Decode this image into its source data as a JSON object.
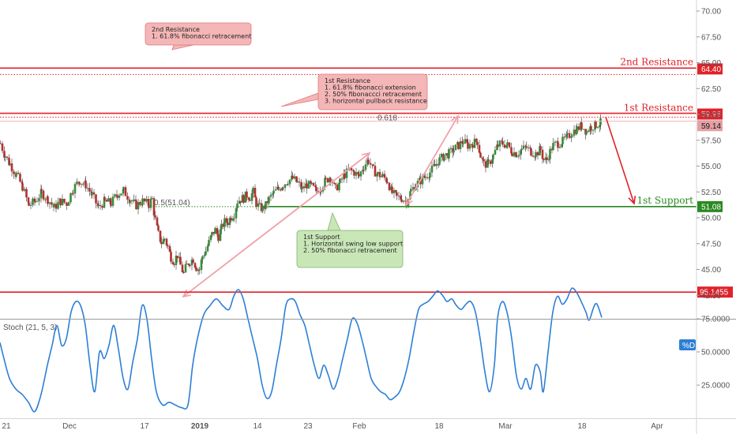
{
  "chart_data": [
    {
      "type": "candlestick",
      "title": "",
      "x_ticks": [
        "21",
        "Dec",
        "17",
        "2019",
        "14",
        "23",
        "Feb",
        "18",
        "Mar",
        "18",
        "Apr"
      ],
      "y_ticks": [
        "70.00",
        "67.50",
        "65.00",
        "62.50",
        "60.00",
        "57.50",
        "55.00",
        "52.50",
        "50.00",
        "47.50",
        "45.00",
        "42.50"
      ],
      "ylim": [
        40.5,
        71
      ],
      "grid": false,
      "price_path": [
        [
          0,
          57.2
        ],
        [
          6,
          56.0
        ],
        [
          12,
          55.2
        ],
        [
          20,
          54.2
        ],
        [
          28,
          53.0
        ],
        [
          36,
          51.2
        ],
        [
          44,
          51.6
        ],
        [
          52,
          52.4
        ],
        [
          60,
          51.8
        ],
        [
          68,
          51.0
        ],
        [
          76,
          51.6
        ],
        [
          84,
          51.4
        ],
        [
          92,
          52.8
        ],
        [
          100,
          53.6
        ],
        [
          108,
          53.2
        ],
        [
          116,
          52.2
        ],
        [
          124,
          51.0
        ],
        [
          132,
          51.6
        ],
        [
          140,
          51.4
        ],
        [
          148,
          52.3
        ],
        [
          156,
          52.6
        ],
        [
          164,
          51.8
        ],
        [
          172,
          51.2
        ],
        [
          180,
          51.6
        ],
        [
          188,
          51.3
        ],
        [
          192,
          51.8
        ],
        [
          196,
          49.8
        ],
        [
          200,
          48.4
        ],
        [
          204,
          47.6
        ],
        [
          208,
          48.0
        ],
        [
          212,
          47.2
        ],
        [
          216,
          46.2
        ],
        [
          220,
          45.8
        ],
        [
          224,
          46.4
        ],
        [
          228,
          45.4
        ],
        [
          232,
          44.6
        ],
        [
          236,
          45.4
        ],
        [
          240,
          45.8
        ],
        [
          244,
          46.0
        ],
        [
          248,
          45.2
        ],
        [
          252,
          45.0
        ],
        [
          256,
          46.3
        ],
        [
          260,
          46.8
        ],
        [
          264,
          47.6
        ],
        [
          268,
          48.4
        ],
        [
          272,
          48.8
        ],
        [
          276,
          48.2
        ],
        [
          280,
          49.0
        ],
        [
          284,
          49.6
        ],
        [
          288,
          49.6
        ],
        [
          292,
          50.1
        ],
        [
          296,
          50.4
        ],
        [
          300,
          51.6
        ],
        [
          304,
          51.8
        ],
        [
          308,
          51.9
        ],
        [
          312,
          52.2
        ],
        [
          316,
          52.0
        ],
        [
          320,
          52.5
        ],
        [
          324,
          51.4
        ],
        [
          328,
          51.0
        ],
        [
          332,
          50.9
        ],
        [
          336,
          51.2
        ],
        [
          340,
          51.8
        ],
        [
          346,
          52.4
        ],
        [
          352,
          52.8
        ],
        [
          358,
          53.2
        ],
        [
          364,
          53.6
        ],
        [
          370,
          53.8
        ],
        [
          376,
          53.4
        ],
        [
          382,
          52.8
        ],
        [
          388,
          53.2
        ],
        [
          394,
          53.0
        ],
        [
          400,
          52.6
        ],
        [
          406,
          53.0
        ],
        [
          412,
          53.6
        ],
        [
          418,
          54.0
        ],
        [
          424,
          52.8
        ],
        [
          430,
          53.4
        ],
        [
          436,
          54.2
        ],
        [
          442,
          54.6
        ],
        [
          448,
          54.4
        ],
        [
          454,
          54.0
        ],
        [
          460,
          55.0
        ],
        [
          466,
          55.6
        ],
        [
          472,
          54.6
        ],
        [
          478,
          54.2
        ],
        [
          484,
          54.0
        ],
        [
          490,
          53.6
        ],
        [
          496,
          52.4
        ],
        [
          502,
          52.0
        ],
        [
          508,
          51.9
        ],
        [
          514,
          51.6
        ],
        [
          520,
          52.6
        ],
        [
          526,
          53.2
        ],
        [
          532,
          53.6
        ],
        [
          538,
          54.0
        ],
        [
          544,
          54.4
        ],
        [
          550,
          55.0
        ],
        [
          556,
          55.6
        ],
        [
          562,
          56.0
        ],
        [
          568,
          56.2
        ],
        [
          574,
          56.6
        ],
        [
          580,
          57.0
        ],
        [
          586,
          57.4
        ],
        [
          592,
          57.0
        ],
        [
          598,
          57.2
        ],
        [
          604,
          57.4
        ],
        [
          608,
          56.0
        ],
        [
          612,
          55.2
        ],
        [
          618,
          55.2
        ],
        [
          624,
          56.0
        ],
        [
          630,
          57.0
        ],
        [
          636,
          57.2
        ],
        [
          642,
          57.0
        ],
        [
          648,
          56.4
        ],
        [
          654,
          56.2
        ],
        [
          660,
          56.6
        ],
        [
          666,
          56.8
        ],
        [
          672,
          56.4
        ],
        [
          678,
          56.2
        ],
        [
          684,
          56.6
        ],
        [
          688,
          55.6
        ],
        [
          692,
          55.6
        ],
        [
          696,
          56.4
        ],
        [
          700,
          57.0
        ],
        [
          706,
          57.2
        ],
        [
          712,
          57.4
        ],
        [
          718,
          57.8
        ],
        [
          724,
          58.3
        ],
        [
          730,
          58.6
        ],
        [
          736,
          58.9
        ],
        [
          742,
          58.4
        ],
        [
          748,
          58.8
        ],
        [
          754,
          59.0
        ],
        [
          760,
          59.2
        ]
      ],
      "levels": [
        {
          "name": "2nd Resistance",
          "value": 64.4,
          "label": "64.40",
          "color": "#e0222a"
        },
        {
          "name": "1st Resistance",
          "value": 59.96,
          "label": "59.96",
          "color": "#e0222a"
        },
        {
          "name": "last-price",
          "value": 59.14,
          "label": "59.14",
          "color": "#e4a0a4"
        },
        {
          "name": "1st Support",
          "value": 51.08,
          "label": "51.08",
          "color": "#2b8a22"
        }
      ],
      "fib_label": "0.5(51.04)",
      "fib_small_label": "0.618",
      "annotations": [
        {
          "id": "r2",
          "lines": [
            "2nd Resistance",
            "1. 61.8% fibonacci retracement"
          ],
          "color": "#f4b6b6"
        },
        {
          "id": "r1",
          "lines": [
            "1st Resistance",
            "1. 61.8% fibonacci extension",
            "2. 50% fibonaccci retracement",
            "3. horizontal pullback resistance"
          ],
          "color": "#f4b6b6"
        },
        {
          "id": "s1",
          "lines": [
            "1st Support",
            "1. Horizontal swing low support",
            "2. 50% fibonacci retracement"
          ],
          "color": "#c9e6b7"
        }
      ],
      "colors": {
        "up": "#3a8a3a",
        "down": "#b4302e",
        "wick": "#333333",
        "resistance": "#e0222a",
        "support": "#2b8a22",
        "arrow": "#f0a0a8",
        "projection": "#e0222a"
      }
    },
    {
      "type": "line",
      "title": "Stoch (21, 5, 3)",
      "series": [
        {
          "name": "%D",
          "color": "#2d7fd6"
        }
      ],
      "y_ticks": [
        "75.0000",
        "50.0000",
        "25.0000"
      ],
      "ylim": [
        0,
        100
      ],
      "level": {
        "value": 95.1455,
        "label": "95.1455"
      },
      "values": [
        [
          0,
          57
        ],
        [
          5,
          45
        ],
        [
          12,
          30
        ],
        [
          20,
          22
        ],
        [
          28,
          18
        ],
        [
          36,
          12
        ],
        [
          44,
          5
        ],
        [
          52,
          18
        ],
        [
          60,
          40
        ],
        [
          66,
          55
        ],
        [
          72,
          70
        ],
        [
          78,
          55
        ],
        [
          84,
          60
        ],
        [
          90,
          80
        ],
        [
          96,
          88
        ],
        [
          102,
          85
        ],
        [
          108,
          70
        ],
        [
          114,
          40
        ],
        [
          120,
          20
        ],
        [
          126,
          50
        ],
        [
          132,
          45
        ],
        [
          138,
          55
        ],
        [
          144,
          70
        ],
        [
          150,
          52
        ],
        [
          156,
          30
        ],
        [
          162,
          22
        ],
        [
          168,
          42
        ],
        [
          174,
          60
        ],
        [
          180,
          85
        ],
        [
          186,
          75
        ],
        [
          192,
          45
        ],
        [
          198,
          20
        ],
        [
          206,
          10
        ],
        [
          214,
          12
        ],
        [
          222,
          10
        ],
        [
          230,
          8
        ],
        [
          238,
          10
        ],
        [
          244,
          40
        ],
        [
          250,
          60
        ],
        [
          258,
          78
        ],
        [
          266,
          85
        ],
        [
          274,
          90
        ],
        [
          282,
          85
        ],
        [
          290,
          82
        ],
        [
          296,
          92
        ],
        [
          302,
          97
        ],
        [
          308,
          90
        ],
        [
          314,
          75
        ],
        [
          320,
          60
        ],
        [
          326,
          45
        ],
        [
          332,
          25
        ],
        [
          338,
          15
        ],
        [
          344,
          20
        ],
        [
          350,
          40
        ],
        [
          356,
          60
        ],
        [
          362,
          85
        ],
        [
          368,
          90
        ],
        [
          374,
          88
        ],
        [
          380,
          78
        ],
        [
          386,
          70
        ],
        [
          392,
          55
        ],
        [
          398,
          40
        ],
        [
          404,
          30
        ],
        [
          410,
          40
        ],
        [
          416,
          32
        ],
        [
          422,
          22
        ],
        [
          428,
          30
        ],
        [
          434,
          45
        ],
        [
          440,
          60
        ],
        [
          446,
          75
        ],
        [
          452,
          72
        ],
        [
          458,
          60
        ],
        [
          464,
          45
        ],
        [
          470,
          30
        ],
        [
          476,
          24
        ],
        [
          482,
          20
        ],
        [
          488,
          18
        ],
        [
          494,
          14
        ],
        [
          500,
          16
        ],
        [
          506,
          20
        ],
        [
          512,
          30
        ],
        [
          518,
          45
        ],
        [
          524,
          65
        ],
        [
          530,
          82
        ],
        [
          536,
          86
        ],
        [
          542,
          88
        ],
        [
          548,
          92
        ],
        [
          554,
          96
        ],
        [
          560,
          93
        ],
        [
          566,
          88
        ],
        [
          572,
          90
        ],
        [
          578,
          85
        ],
        [
          584,
          82
        ],
        [
          590,
          86
        ],
        [
          596,
          88
        ],
        [
          602,
          80
        ],
        [
          608,
          60
        ],
        [
          614,
          35
        ],
        [
          620,
          20
        ],
        [
          626,
          40
        ],
        [
          630,
          75
        ],
        [
          636,
          88
        ],
        [
          642,
          80
        ],
        [
          648,
          60
        ],
        [
          654,
          32
        ],
        [
          660,
          22
        ],
        [
          666,
          30
        ],
        [
          672,
          22
        ],
        [
          678,
          40
        ],
        [
          684,
          35
        ],
        [
          688,
          20
        ],
        [
          694,
          50
        ],
        [
          700,
          80
        ],
        [
          706,
          92
        ],
        [
          712,
          86
        ],
        [
          718,
          90
        ],
        [
          724,
          98
        ],
        [
          730,
          95
        ],
        [
          736,
          88
        ],
        [
          742,
          80
        ],
        [
          746,
          74
        ],
        [
          752,
          84
        ],
        [
          756,
          86
        ],
        [
          762,
          76
        ]
      ]
    }
  ]
}
